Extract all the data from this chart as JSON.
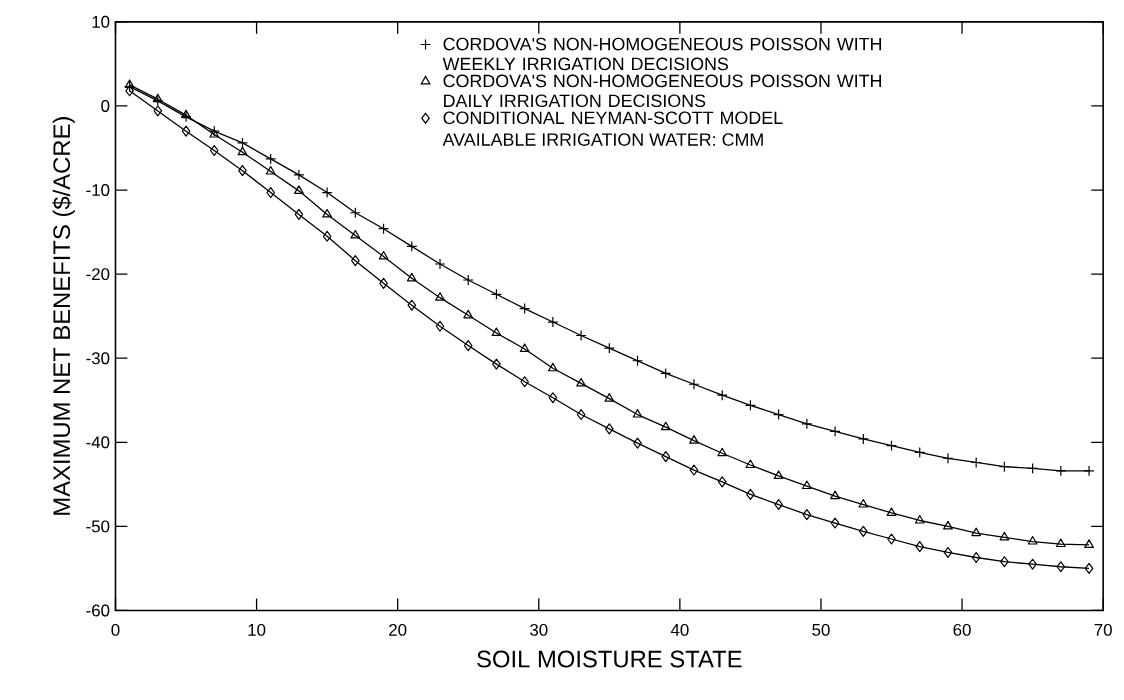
{
  "chart_data": {
    "type": "line",
    "xlabel": "SOIL MOISTURE STATE",
    "ylabel": "MAXIMUM NET BENEFITS ($/ACRE)",
    "x": [
      1,
      3,
      5,
      7,
      9,
      11,
      13,
      15,
      17,
      19,
      21,
      23,
      25,
      27,
      29,
      31,
      33,
      35,
      37,
      39,
      41,
      43,
      45,
      47,
      49,
      51,
      53,
      55,
      57,
      59,
      61,
      63,
      65,
      67,
      69
    ],
    "series": [
      {
        "name": "CORDOVA'S NON-HOMOGENEOUS POISSON WITH WEEKLY IRRIGATION DECISIONS",
        "color": "#000000",
        "marker": "cross",
        "values": [
          2.3,
          0.6,
          -1.3,
          -3.0,
          -4.4,
          -6.3,
          -8.2,
          -10.3,
          -12.7,
          -14.6,
          -16.7,
          -18.8,
          -20.7,
          -22.4,
          -24.1,
          -25.7,
          -27.3,
          -28.8,
          -30.3,
          -31.8,
          -33.1,
          -34.4,
          -35.6,
          -36.7,
          -37.8,
          -38.7,
          -39.6,
          -40.4,
          -41.2,
          -41.9,
          -42.4,
          -42.9,
          -43.1,
          -43.4,
          -43.4
        ]
      },
      {
        "name": "CORDOVA'S NON-HOMOGENEOUS POISSON WITH DAILY IRRIGATION DECISIONS",
        "color": "#000000",
        "marker": "triangle",
        "values": [
          2.5,
          0.8,
          -1.1,
          -3.4,
          -5.5,
          -7.8,
          -10.1,
          -12.9,
          -15.4,
          -17.9,
          -20.5,
          -22.8,
          -24.9,
          -27.0,
          -28.9,
          -31.2,
          -33.0,
          -34.8,
          -36.7,
          -38.2,
          -39.8,
          -41.3,
          -42.7,
          -44.0,
          -45.2,
          -46.4,
          -47.4,
          -48.4,
          -49.3,
          -50.0,
          -50.8,
          -51.3,
          -51.8,
          -52.1,
          -52.2
        ]
      },
      {
        "name": "CONDITIONAL NEYMAN-SCOTT MODEL",
        "color": "#000000",
        "marker": "diamond",
        "values": [
          1.8,
          -0.6,
          -3.0,
          -5.3,
          -7.7,
          -10.3,
          -12.9,
          -15.5,
          -18.4,
          -21.1,
          -23.7,
          -26.2,
          -28.5,
          -30.7,
          -32.8,
          -34.7,
          -36.7,
          -38.4,
          -40.1,
          -41.7,
          -43.3,
          -44.7,
          -46.2,
          -47.4,
          -48.6,
          -49.6,
          -50.6,
          -51.5,
          -52.4,
          -53.1,
          -53.7,
          -54.2,
          -54.5,
          -54.8,
          -55.0
        ]
      }
    ],
    "annotations": [
      "AVAILABLE IRRIGATION WATER: CMM"
    ],
    "xlim": [
      0,
      70
    ],
    "ylim": [
      -60,
      10
    ],
    "xticks": [
      0,
      10,
      20,
      30,
      40,
      50,
      60,
      70
    ],
    "yticks": [
      -60,
      -50,
      -40,
      -30,
      -20,
      -10,
      0,
      10
    ],
    "legend": "top right"
  }
}
